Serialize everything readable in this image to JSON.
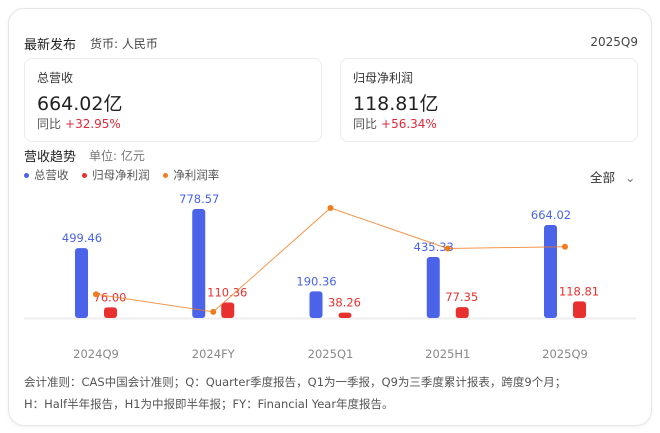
{
  "header": {
    "title": "最新发布",
    "currency": "货币: 人民币",
    "period": "2025Q9"
  },
  "metrics": [
    {
      "label": "总营收",
      "value": "664.02亿",
      "yoy_label": "同比",
      "yoy": "+32.95%"
    },
    {
      "label": "归母净利润",
      "value": "118.81亿",
      "yoy_label": "同比",
      "yoy": "+56.34%"
    }
  ],
  "trend": {
    "title": "营收趋势",
    "unit": "单位: 亿元",
    "filter": "全部"
  },
  "colors": {
    "revenue": "#4a63e8",
    "profit": "#e8312f",
    "margin": "#f07c1e",
    "up": "#e0283c"
  },
  "chart_data": {
    "type": "bar",
    "categories": [
      "2024Q9",
      "2024FY",
      "2025Q1",
      "2025H1",
      "2025Q9"
    ],
    "series": [
      {
        "name": "总营收",
        "type": "bar",
        "values": [
          499.46,
          778.57,
          190.36,
          435.33,
          664.02
        ],
        "labels": [
          "499.46",
          "778.57",
          "190.36",
          "435.33",
          "664.02"
        ]
      },
      {
        "name": "归母净利润",
        "type": "bar",
        "values": [
          76.0,
          110.36,
          38.26,
          77.35,
          118.81
        ],
        "labels": [
          "76.00",
          "110.36",
          "38.26",
          "77.35",
          "118.81"
        ]
      },
      {
        "name": "净利润率",
        "type": "line",
        "values": [
          15.2,
          14.2,
          20.1,
          17.8,
          17.9
        ]
      }
    ],
    "ylim": [
      0,
      800
    ],
    "grid": false,
    "legend": "top-left"
  },
  "footnote": [
    "会计准则：CAS中国会计准则；Q：Quarter季度报告，Q1为一季报，Q9为三季度累计报表，跨度9个月；",
    "H：Half半年报告，H1为中报即半年报；FY：Financial Year年度报告。"
  ]
}
